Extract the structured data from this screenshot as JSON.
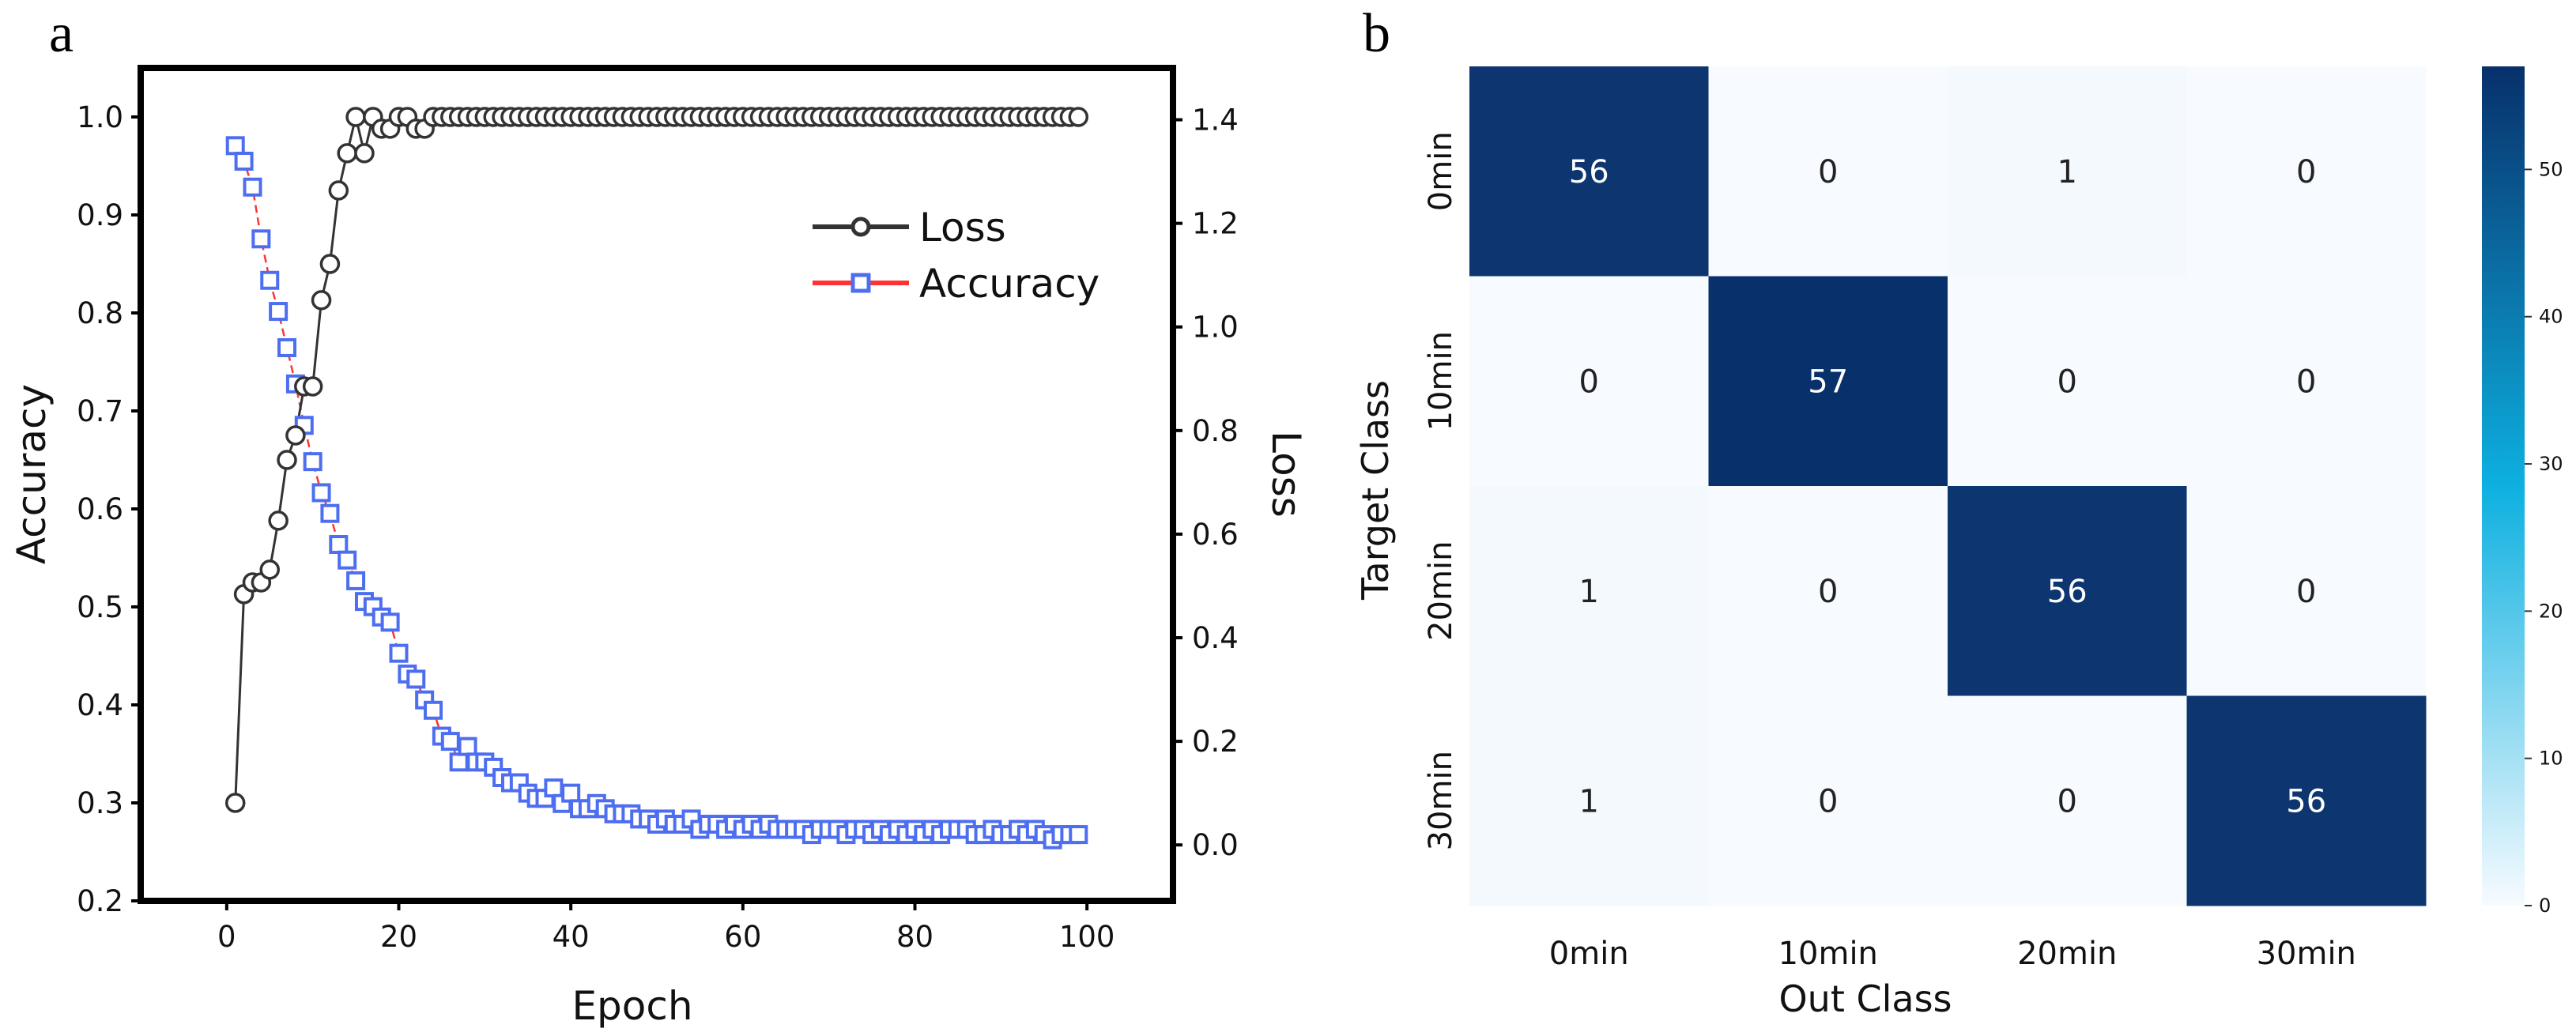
{
  "figure": {
    "panel_a_letter": "a",
    "panel_b_letter": "b"
  },
  "colors": {
    "loss_line": "#333333",
    "loss_marker_edge": "#333333",
    "accuracy_line": "#ff3333",
    "accuracy_marker_edge": "#4d6ef0",
    "cmap_low": "#f7fbff",
    "cmap_mid": "#0db0e0",
    "cmap_high": "#08306b"
  },
  "chart_data": [
    {
      "type": "line",
      "title": "",
      "xlabel": "Epoch",
      "ylabel": "Accuracy",
      "y2label": "Loss",
      "xlim": [
        -10,
        110
      ],
      "ylim": [
        0.2,
        1.05
      ],
      "y2lim": [
        -0.108,
        1.5
      ],
      "xticks": [
        "0",
        "20",
        "40",
        "60",
        "80",
        "100"
      ],
      "yticks": [
        "0.2",
        "0.3",
        "0.4",
        "0.5",
        "0.6",
        "0.7",
        "0.8",
        "0.9",
        "1.0"
      ],
      "y2ticks": [
        "0.0",
        "0.2",
        "0.4",
        "0.6",
        "0.8",
        "1.0",
        "1.2",
        "1.4"
      ],
      "legend_position": "upper-right",
      "legend": [
        "Loss",
        "Accuracy"
      ],
      "series": [
        {
          "name": "Loss",
          "axis": "left",
          "marker": "circle",
          "x": [
            1,
            2,
            3,
            4,
            5,
            6,
            7,
            8,
            9,
            10,
            11,
            12,
            13,
            14,
            15,
            16,
            17,
            18,
            19,
            20,
            21,
            22,
            23,
            24,
            25,
            26,
            27,
            28,
            29,
            30,
            31,
            32,
            33,
            34,
            35,
            36,
            37,
            38,
            39,
            40,
            41,
            42,
            43,
            44,
            45,
            46,
            47,
            48,
            49,
            50,
            51,
            52,
            53,
            54,
            55,
            56,
            57,
            58,
            59,
            60,
            61,
            62,
            63,
            64,
            65,
            66,
            67,
            68,
            69,
            70,
            71,
            72,
            73,
            74,
            75,
            76,
            77,
            78,
            79,
            80,
            81,
            82,
            83,
            84,
            85,
            86,
            87,
            88,
            89,
            90,
            91,
            92,
            93,
            94,
            95,
            96,
            97,
            98,
            99
          ],
          "values": [
            0.3,
            0.513,
            0.525,
            0.525,
            0.538,
            0.588,
            0.65,
            0.675,
            0.725,
            0.725,
            0.813,
            0.85,
            0.925,
            0.963,
            1.0,
            0.963,
            1.0,
            0.988,
            0.988,
            1.0,
            1.0,
            0.988,
            0.988,
            1.0,
            1.0,
            1.0,
            1.0,
            1.0,
            1.0,
            1.0,
            1.0,
            1.0,
            1.0,
            1.0,
            1.0,
            1.0,
            1.0,
            1.0,
            1.0,
            1.0,
            1.0,
            1.0,
            1.0,
            1.0,
            1.0,
            1.0,
            1.0,
            1.0,
            1.0,
            1.0,
            1.0,
            1.0,
            1.0,
            1.0,
            1.0,
            1.0,
            1.0,
            1.0,
            1.0,
            1.0,
            1.0,
            1.0,
            1.0,
            1.0,
            1.0,
            1.0,
            1.0,
            1.0,
            1.0,
            1.0,
            1.0,
            1.0,
            1.0,
            1.0,
            1.0,
            1.0,
            1.0,
            1.0,
            1.0,
            1.0,
            1.0,
            1.0,
            1.0,
            1.0,
            1.0,
            1.0,
            1.0,
            1.0,
            1.0,
            1.0,
            1.0,
            1.0,
            1.0,
            1.0,
            1.0,
            1.0,
            1.0,
            1.0,
            1.0
          ]
        },
        {
          "name": "Accuracy",
          "axis": "right",
          "marker": "square",
          "x": [
            1,
            2,
            3,
            4,
            5,
            6,
            7,
            8,
            9,
            10,
            11,
            12,
            13,
            14,
            15,
            16,
            17,
            18,
            19,
            20,
            21,
            22,
            23,
            24,
            25,
            26,
            27,
            28,
            29,
            30,
            31,
            32,
            33,
            34,
            35,
            36,
            37,
            38,
            39,
            40,
            41,
            42,
            43,
            44,
            45,
            46,
            47,
            48,
            49,
            50,
            51,
            52,
            53,
            54,
            55,
            56,
            57,
            58,
            59,
            60,
            61,
            62,
            63,
            64,
            65,
            66,
            67,
            68,
            69,
            70,
            71,
            72,
            73,
            74,
            75,
            76,
            77,
            78,
            79,
            80,
            81,
            82,
            83,
            84,
            85,
            86,
            87,
            88,
            89,
            90,
            91,
            92,
            93,
            94,
            95,
            96,
            97,
            98,
            99
          ],
          "values": [
            1.35,
            1.32,
            1.27,
            1.17,
            1.09,
            1.03,
            0.96,
            0.89,
            0.81,
            0.74,
            0.68,
            0.64,
            0.58,
            0.55,
            0.51,
            0.47,
            0.46,
            0.44,
            0.43,
            0.37,
            0.33,
            0.32,
            0.28,
            0.26,
            0.21,
            0.2,
            0.16,
            0.19,
            0.16,
            0.16,
            0.15,
            0.13,
            0.12,
            0.12,
            0.1,
            0.09,
            0.09,
            0.11,
            0.08,
            0.1,
            0.07,
            0.07,
            0.08,
            0.07,
            0.06,
            0.06,
            0.06,
            0.05,
            0.05,
            0.04,
            0.05,
            0.04,
            0.04,
            0.05,
            0.03,
            0.04,
            0.04,
            0.03,
            0.04,
            0.03,
            0.04,
            0.03,
            0.04,
            0.03,
            0.03,
            0.03,
            0.03,
            0.02,
            0.03,
            0.03,
            0.03,
            0.02,
            0.03,
            0.03,
            0.02,
            0.03,
            0.02,
            0.03,
            0.02,
            0.03,
            0.02,
            0.03,
            0.02,
            0.03,
            0.03,
            0.03,
            0.02,
            0.02,
            0.03,
            0.02,
            0.02,
            0.03,
            0.02,
            0.03,
            0.02,
            0.01,
            0.02,
            0.02,
            0.02
          ]
        }
      ]
    },
    {
      "type": "heatmap",
      "title": "",
      "xlabel": "Out Class",
      "ylabel": "Target Class",
      "categories": [
        "0min",
        "10min",
        "20min",
        "30min"
      ],
      "matrix": [
        [
          56,
          0,
          1,
          0
        ],
        [
          0,
          57,
          0,
          0
        ],
        [
          1,
          0,
          56,
          0
        ],
        [
          1,
          0,
          0,
          56
        ]
      ],
      "colorbar_range": [
        0,
        57
      ],
      "colorbar_ticks": [
        "0",
        "10",
        "20",
        "30",
        "40",
        "50"
      ]
    }
  ]
}
